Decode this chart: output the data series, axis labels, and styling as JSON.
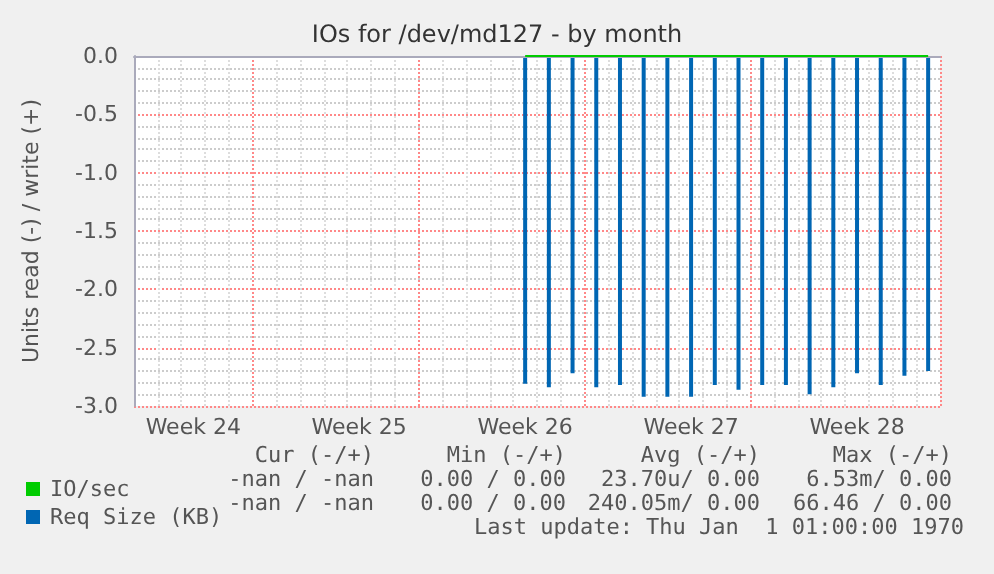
{
  "chart_data": {
    "type": "bar",
    "title": "IOs for /dev/md127 - by month",
    "ylabel": "Units read (-) / write (+)",
    "categories": [
      null,
      null,
      "Week 24",
      null,
      null,
      null,
      null,
      null,
      null,
      "Week 25",
      null,
      null,
      null,
      null,
      null,
      null,
      "Week 26",
      null,
      null,
      null,
      null,
      null,
      null,
      "Week 27",
      null,
      null,
      null,
      null,
      null,
      null,
      "Week 28",
      null,
      null,
      null
    ],
    "ylim": [
      -3,
      0
    ],
    "yticks": [
      {
        "value": -3,
        "label": "-3.0"
      },
      {
        "value": -2.5,
        "label": "-2.5"
      },
      {
        "value": -2,
        "label": "-2.0"
      },
      {
        "value": -1.5,
        "label": "-1.5"
      },
      {
        "value": -1,
        "label": "-1.0"
      },
      {
        "value": -0.5,
        "label": "-0.5"
      },
      {
        "value": 0,
        "label": "0.0"
      }
    ],
    "series": [
      {
        "name": "IO/sec",
        "type": "line",
        "color": "#00cc00",
        "values": [
          null,
          null,
          null,
          null,
          null,
          null,
          null,
          null,
          null,
          null,
          null,
          null,
          null,
          null,
          null,
          null,
          0,
          0,
          0,
          0,
          0,
          0,
          0,
          0,
          0,
          0,
          0,
          0,
          0,
          0,
          0,
          0,
          0,
          0
        ]
      },
      {
        "name": "Req Size (KB)",
        "color": "#0066b3",
        "values": [
          null,
          null,
          null,
          null,
          null,
          null,
          null,
          null,
          null,
          null,
          null,
          null,
          null,
          null,
          null,
          null,
          -2.81,
          -2.84,
          -2.72,
          -2.84,
          -2.82,
          -2.92,
          -2.92,
          -2.92,
          -2.82,
          -2.86,
          -2.82,
          -2.82,
          -2.9,
          -2.84,
          -2.72,
          -2.82,
          -2.74,
          -2.7
        ]
      }
    ],
    "annotations": [
      "Cur (-/+)",
      "Min (-/+)",
      "Avg (-/+)",
      "Max (-/+)",
      "-nan / -nan",
      "0.00 / 0.00",
      "23.70u/ 0.00",
      "6.53m/ 0.00",
      "-nan / -nan",
      "0.00 / 0.00",
      "240.05m/ 0.00",
      "66.46 / 0.00",
      "Last update: Thu Jan  1 01:00:00 1970"
    ],
    "grid": true,
    "legend": "bottom left"
  }
}
